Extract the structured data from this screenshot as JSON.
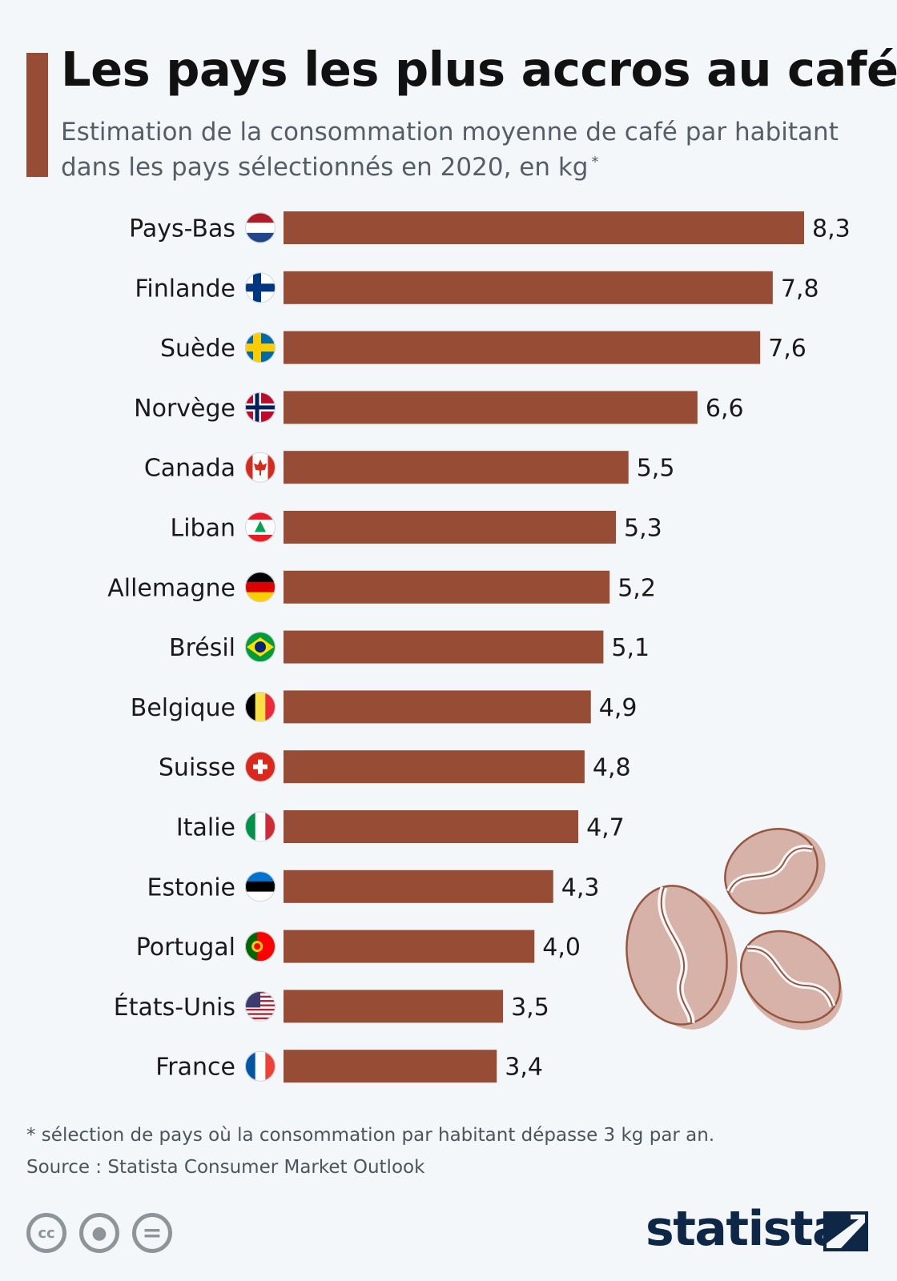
{
  "header": {
    "title": "Les pays les plus accros au café",
    "subtitle": "Estimation de la consommation moyenne de café par habitant dans les pays sélectionnés en 2020, en kg",
    "subtitle_marker": "*"
  },
  "colors": {
    "bar": "#964c35",
    "accent": "#964c35",
    "bean_fill": "#d6b2a8",
    "bean_stroke": "#96553f",
    "text": "#1a1a1a"
  },
  "chart_data": {
    "type": "bar",
    "orientation": "horizontal",
    "categories": [
      "Pays-Bas",
      "Finlande",
      "Suède",
      "Norvège",
      "Canada",
      "Liban",
      "Allemagne",
      "Brésil",
      "Belgique",
      "Suisse",
      "Italie",
      "Estonie",
      "Portugal",
      "États-Unis",
      "France"
    ],
    "values": [
      8.3,
      7.8,
      7.6,
      6.6,
      5.5,
      5.3,
      5.2,
      5.1,
      4.9,
      4.8,
      4.7,
      4.3,
      4.0,
      3.5,
      3.4
    ],
    "value_labels": [
      "8,3",
      "7,8",
      "7,6",
      "6,6",
      "5,5",
      "5,3",
      "5,2",
      "5,1",
      "4,9",
      "4,8",
      "4,7",
      "4,3",
      "4,0",
      "3,5",
      "3,4"
    ],
    "flags": [
      "netherlands-flag",
      "finland-flag",
      "sweden-flag",
      "norway-flag",
      "canada-flag",
      "lebanon-flag",
      "germany-flag",
      "brazil-flag",
      "belgium-flag",
      "switzerland-flag",
      "italy-flag",
      "estonia-flag",
      "portugal-flag",
      "usa-flag",
      "france-flag"
    ],
    "xlim": [
      0,
      8.3
    ],
    "grid": false,
    "legend": "none"
  },
  "footer": {
    "footnote": "* sélection de pays où la consommation par habitant dépasse 3 kg par an.",
    "source": "Source : Statista Consumer Market Outlook",
    "license_icons": [
      "cc-icon",
      "attribution-icon",
      "no-derivatives-icon"
    ],
    "license_glyphs": [
      "cc",
      "●",
      "="
    ],
    "logo_text": "statista"
  }
}
